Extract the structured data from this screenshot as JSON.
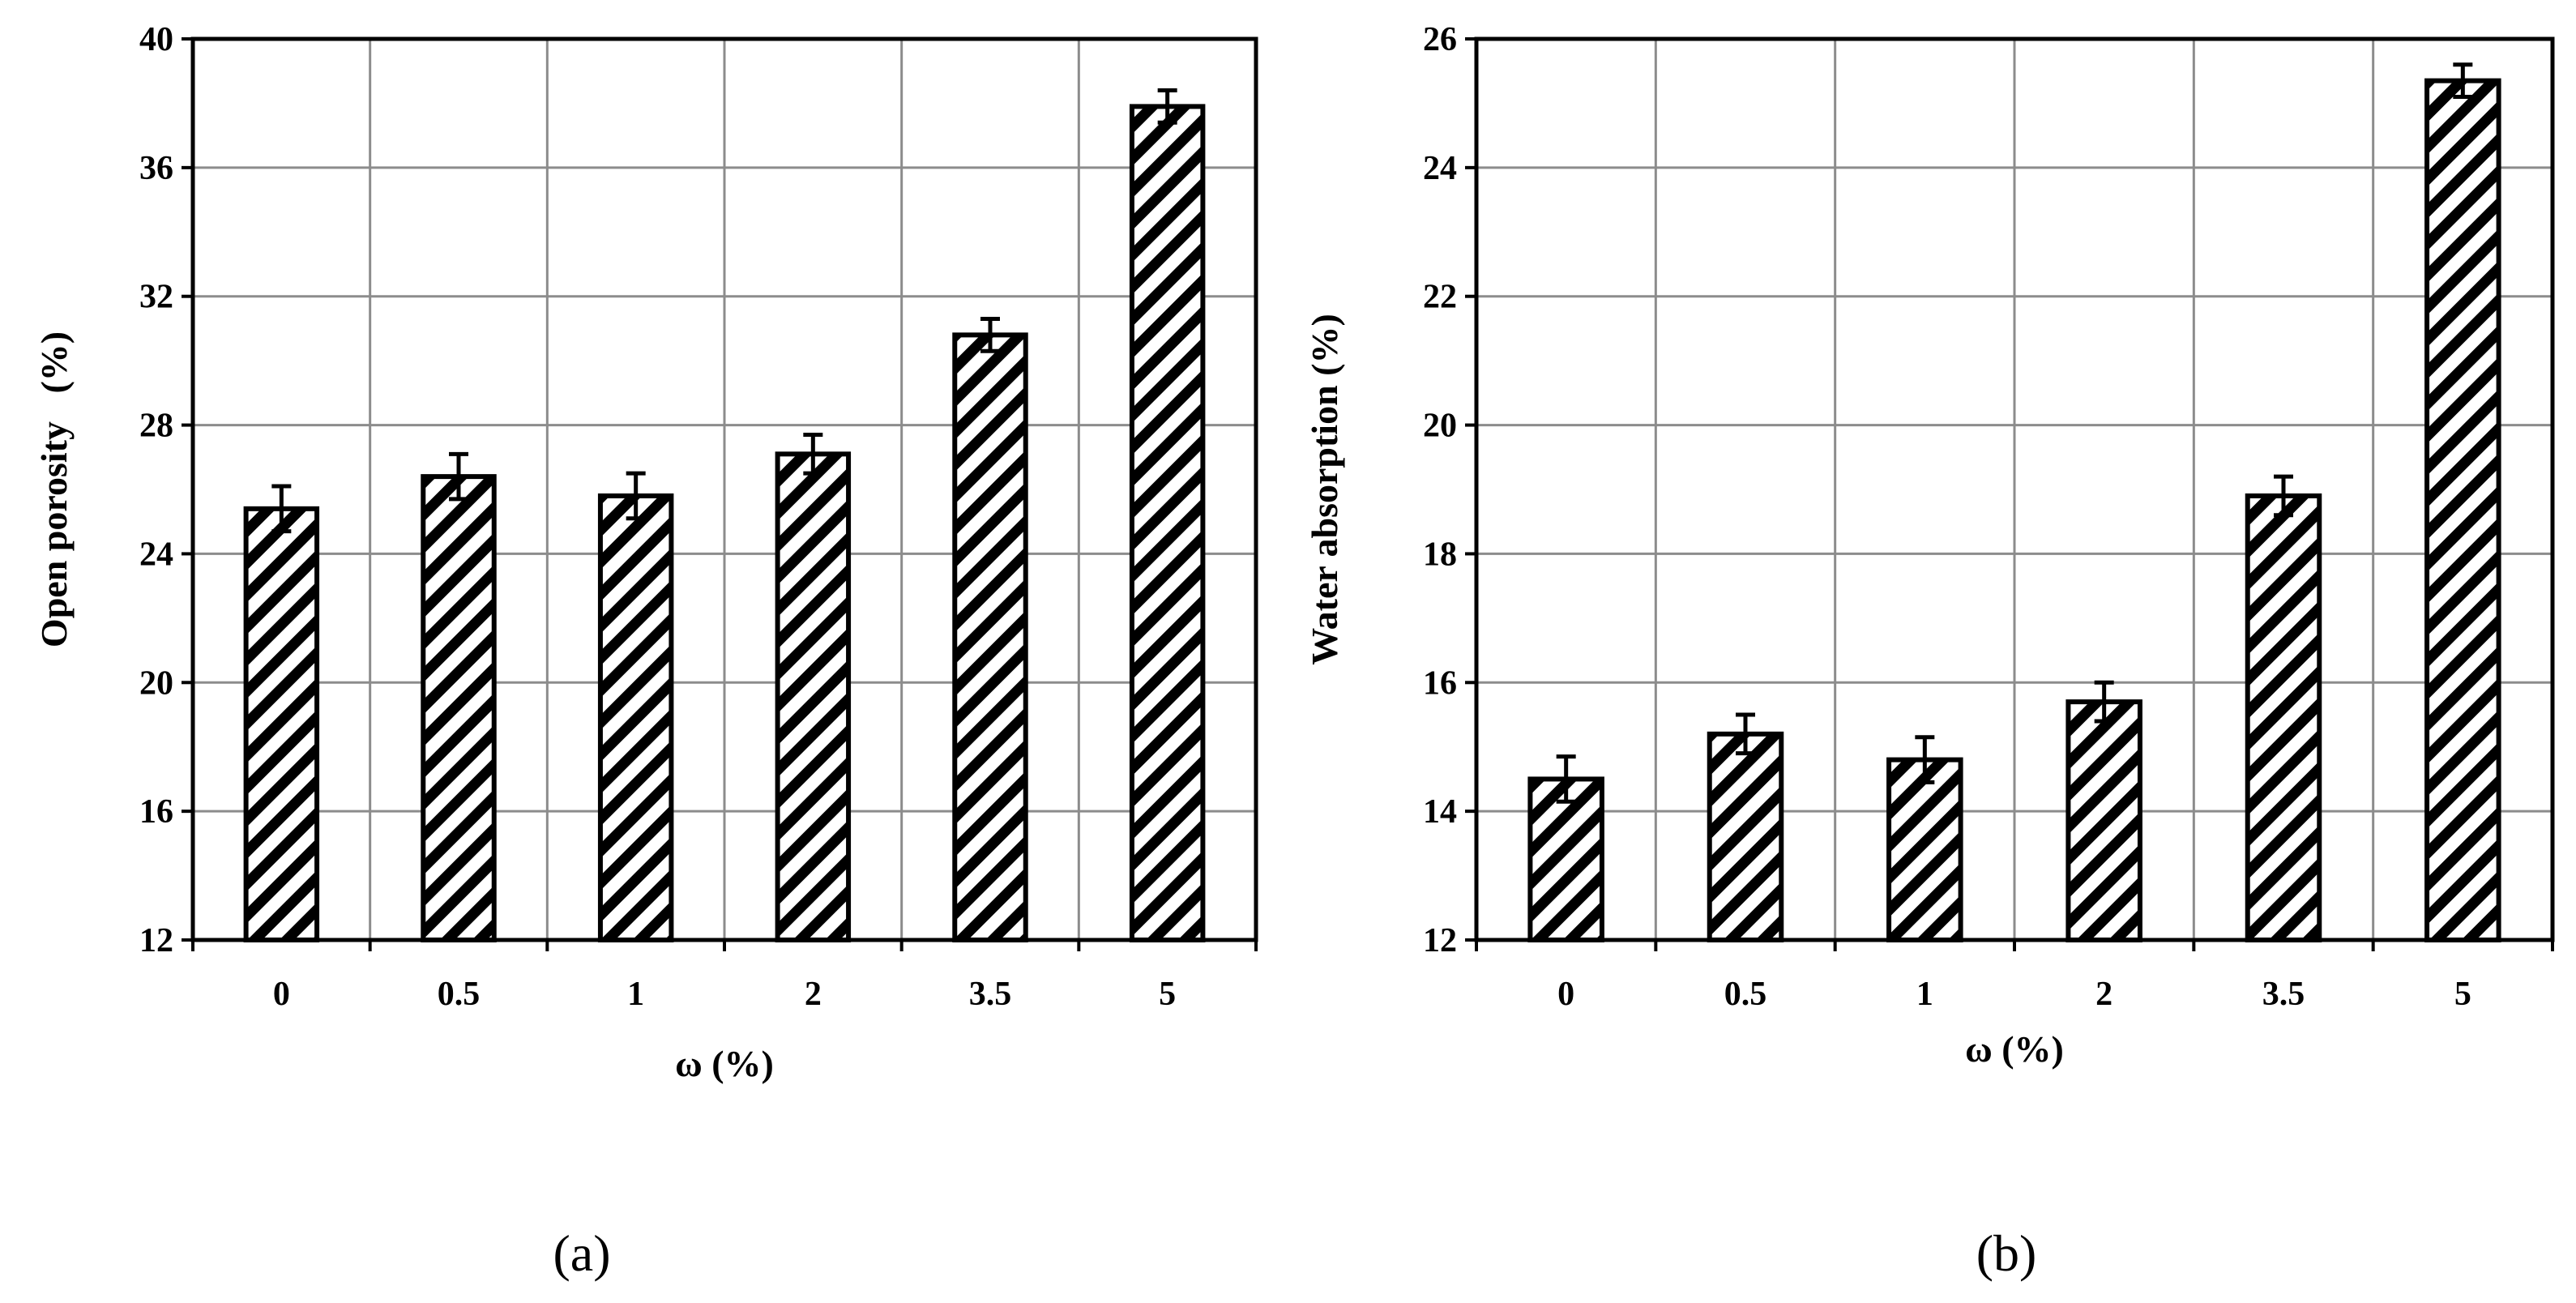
{
  "chart_data": [
    {
      "type": "bar",
      "panel_label": "(a)",
      "categories": [
        "0",
        "0.5",
        "1",
        "2",
        "3.5",
        "5"
      ],
      "values": [
        25.4,
        26.4,
        25.8,
        27.1,
        30.8,
        37.9
      ],
      "errors": [
        0.7,
        0.7,
        0.7,
        0.6,
        0.5,
        0.5
      ],
      "xlabel": "ω (%)",
      "ylabel": "Open porosity   (%)",
      "ylim": [
        12,
        40
      ],
      "yticks": [
        "12",
        "16",
        "20",
        "24",
        "28",
        "32",
        "36",
        "40"
      ],
      "grid": true,
      "pattern": "diagonal hatch"
    },
    {
      "type": "bar",
      "panel_label": "(b)",
      "categories": [
        "0",
        "0.5",
        "1",
        "2",
        "3.5",
        "5"
      ],
      "values": [
        14.5,
        15.2,
        14.8,
        15.7,
        18.9,
        25.35
      ],
      "errors": [
        0.35,
        0.3,
        0.35,
        0.3,
        0.3,
        0.25
      ],
      "xlabel": "ω (%)",
      "ylabel": "Water absorption (%)",
      "ylim": [
        12,
        26
      ],
      "yticks": [
        "12",
        "14",
        "16",
        "18",
        "20",
        "22",
        "24",
        "26"
      ],
      "grid": true,
      "pattern": "diagonal hatch"
    }
  ]
}
